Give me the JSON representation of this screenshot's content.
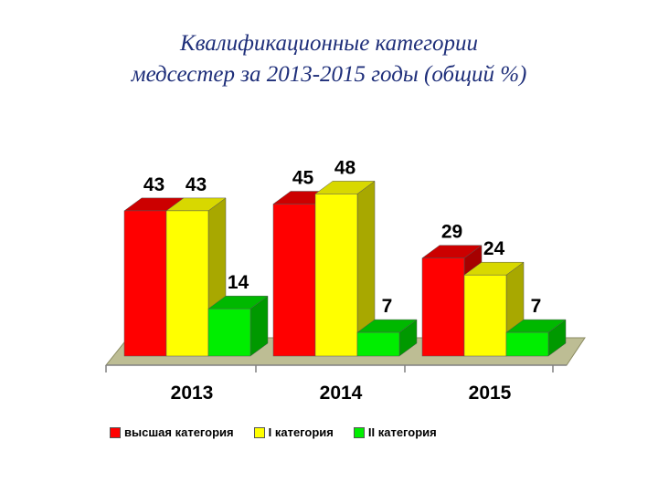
{
  "title": [
    "Квалификационные  категории",
    "медсестер за 2013-2015 годы  (общий %)"
  ],
  "chart_data": {
    "type": "bar",
    "categories": [
      "2013",
      "2014",
      "2015"
    ],
    "series": [
      {
        "name": "высшая категория",
        "values": [
          43,
          45,
          29
        ],
        "color": "#ff0000"
      },
      {
        "name": "I категория",
        "values": [
          43,
          48,
          24
        ],
        "color": "#ffff00"
      },
      {
        "name": "II категория",
        "values": [
          14,
          7,
          7
        ],
        "color": "#00ee00"
      }
    ],
    "ylim": [
      0,
      50
    ],
    "grid": false,
    "legend_position": "bottom"
  }
}
